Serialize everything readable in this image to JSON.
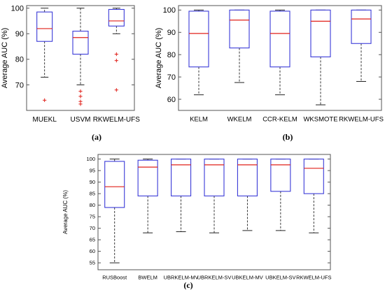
{
  "chart_data": [
    {
      "type": "box",
      "panel": "(a)",
      "ylabel": "Average AUC (%)",
      "ylim": [
        60,
        101
      ],
      "yticks": [
        70,
        80,
        90,
        100
      ],
      "categories": [
        "MUEKL",
        "USVM",
        "RKWELM-UFS"
      ],
      "boxes": [
        {
          "min": 73,
          "q1": 87,
          "median": 92,
          "q3": 98.5,
          "max": 100,
          "outliers": [
            64
          ]
        },
        {
          "min": 70,
          "q1": 82,
          "median": 88.5,
          "q3": 91,
          "max": 100,
          "outliers": [
            67.5,
            65.5,
            62.5,
            63.5
          ]
        },
        {
          "min": 90,
          "q1": 93,
          "median": 95,
          "q3": 99.5,
          "max": 100,
          "outliers": [
            82,
            79.5,
            68
          ]
        }
      ]
    },
    {
      "type": "box",
      "panel": "(b)",
      "ylabel": "Average AUC (%)",
      "ylim": [
        55,
        102
      ],
      "yticks": [
        60,
        70,
        80,
        90,
        100
      ],
      "categories": [
        "KELM",
        "WKELM",
        "CCR-KELM",
        "WKSMOTE",
        "RKWELM-UFS"
      ],
      "boxes": [
        {
          "min": 62,
          "q1": 74.5,
          "median": 89.5,
          "q3": 99.5,
          "max": 100,
          "outliers": []
        },
        {
          "min": 67.5,
          "q1": 83,
          "median": 95.5,
          "q3": 100,
          "max": 100,
          "outliers": []
        },
        {
          "min": 62,
          "q1": 74.5,
          "median": 89.5,
          "q3": 99.5,
          "max": 100,
          "outliers": []
        },
        {
          "min": 57.5,
          "q1": 79,
          "median": 95,
          "q3": 100,
          "max": 100,
          "outliers": []
        },
        {
          "min": 68,
          "q1": 85,
          "median": 96,
          "q3": 100,
          "max": 100,
          "outliers": []
        }
      ]
    },
    {
      "type": "box",
      "panel": "(c)",
      "ylabel": "Average AUC (%)",
      "ylim": [
        52,
        102
      ],
      "yticks": [
        55,
        60,
        65,
        70,
        75,
        80,
        85,
        90,
        95,
        100
      ],
      "categories": [
        "RUSBoost",
        "BWELM",
        "UBRKELM-MV",
        "UBRKELM-SV",
        "UBKELM-MV",
        "UBKELM-SV",
        "RKWELM-UFS"
      ],
      "boxes": [
        {
          "min": 55,
          "q1": 79,
          "median": 88,
          "q3": 99,
          "max": 100,
          "outliers": []
        },
        {
          "min": 68,
          "q1": 84,
          "median": 96.5,
          "q3": 99.5,
          "max": 100,
          "outliers": []
        },
        {
          "min": 68.5,
          "q1": 84,
          "median": 97.5,
          "q3": 100,
          "max": 100,
          "outliers": []
        },
        {
          "min": 68,
          "q1": 84,
          "median": 97.5,
          "q3": 100,
          "max": 100,
          "outliers": []
        },
        {
          "min": 69,
          "q1": 84,
          "median": 97.5,
          "q3": 100,
          "max": 100,
          "outliers": []
        },
        {
          "min": 69,
          "q1": 86,
          "median": 97.5,
          "q3": 100,
          "max": 100,
          "outliers": []
        },
        {
          "min": 68,
          "q1": 85,
          "median": 96,
          "q3": 100,
          "max": 100,
          "outliers": []
        }
      ]
    }
  ],
  "colors": {
    "box": "#3a3ad8",
    "median": "#e0201a",
    "whisker": "#222222",
    "outlier": "#e0201a",
    "axis": "#555555"
  }
}
